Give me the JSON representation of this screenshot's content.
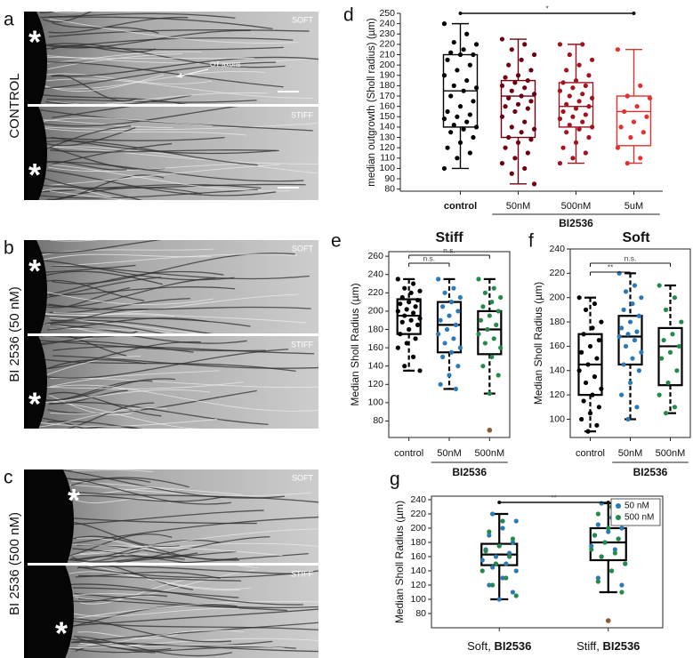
{
  "images": [
    {
      "label": "a",
      "side_label": "CONTROL",
      "tiles": [
        {
          "tag": "SOFT",
          "marker": "*"
        },
        {
          "tag": "STIFF",
          "marker": "*"
        }
      ],
      "annotation": "OT axons"
    },
    {
      "label": "b",
      "side_label": "BI 2536 (50 nM)",
      "tiles": [
        {
          "tag": "SOFT",
          "marker": "*"
        },
        {
          "tag": "STIFF",
          "marker": "*"
        }
      ]
    },
    {
      "label": "c",
      "side_label": "BI 2536 (500 nM)",
      "tiles": [
        {
          "tag": "SOFT",
          "marker": "*"
        },
        {
          "tag": "STIFF",
          "marker": "*"
        }
      ]
    }
  ],
  "chart_data": [
    {
      "type": "box",
      "label": "d",
      "ylabel": "median outgrowth (Sholl radius) (µm)",
      "categories": [
        "control",
        "50nM",
        "500nM",
        "5uM"
      ],
      "group_label": "BI2536",
      "ylim": [
        78,
        250
      ],
      "yticks": [
        80,
        90,
        100,
        110,
        120,
        130,
        140,
        150,
        160,
        170,
        180,
        190,
        200,
        210,
        220,
        230,
        240,
        250
      ],
      "frame": false,
      "whisker_dashed": false,
      "boxes": [
        {
          "color": "#000000",
          "min": 100,
          "q1": 140,
          "median": 175,
          "q3": 210,
          "max": 240,
          "points": [
            240,
            230,
            222,
            220,
            215,
            212,
            210,
            210,
            205,
            200,
            195,
            190,
            185,
            180,
            178,
            175,
            170,
            165,
            160,
            155,
            152,
            150,
            148,
            145,
            142,
            140,
            138,
            135,
            130,
            125,
            120,
            115,
            110,
            100
          ]
        },
        {
          "color": "#6b0010",
          "min": 85,
          "q1": 130,
          "median": 170,
          "q3": 185,
          "max": 225,
          "points": [
            225,
            220,
            215,
            210,
            205,
            200,
            195,
            190,
            188,
            185,
            183,
            180,
            178,
            175,
            172,
            170,
            168,
            165,
            162,
            160,
            158,
            155,
            150,
            145,
            140,
            138,
            135,
            130,
            128,
            125,
            120,
            115,
            110,
            105,
            100,
            95,
            85
          ]
        },
        {
          "color": "#a3121f",
          "min": 105,
          "q1": 140,
          "median": 160,
          "q3": 183,
          "max": 220,
          "points": [
            220,
            220,
            210,
            205,
            200,
            195,
            190,
            185,
            183,
            180,
            178,
            175,
            172,
            170,
            168,
            165,
            162,
            160,
            158,
            155,
            152,
            150,
            148,
            145,
            142,
            140,
            138,
            135,
            130,
            125,
            120,
            115,
            110,
            105
          ]
        },
        {
          "color": "#e3302b",
          "min": 105,
          "q1": 122,
          "median": 155,
          "q3": 170,
          "max": 215,
          "points": [
            215,
            180,
            170,
            168,
            160,
            155,
            150,
            145,
            140,
            135,
            130,
            120,
            110,
            105
          ]
        }
      ],
      "significance": [
        {
          "between": [
            0,
            3
          ],
          "label": "*"
        }
      ]
    },
    {
      "type": "box",
      "label": "e",
      "title": "Stiff",
      "ylabel": "Median Sholl Radius  (µm)",
      "categories": [
        "control",
        "50nM",
        "500nM"
      ],
      "group_label": "BI2536",
      "ylim": [
        62,
        265
      ],
      "yticks": [
        80,
        100,
        120,
        140,
        160,
        180,
        200,
        220,
        240,
        260
      ],
      "frame": true,
      "whisker_dashed": true,
      "boxes": [
        {
          "color": "#000000",
          "point_color": "#000000",
          "min": 135,
          "q1": 175,
          "median": 195,
          "q3": 213,
          "max": 235,
          "points": [
            235,
            230,
            225,
            222,
            220,
            215,
            212,
            210,
            208,
            205,
            202,
            200,
            198,
            195,
            192,
            190,
            188,
            185,
            180,
            175,
            170,
            165,
            160,
            150,
            140,
            135
          ]
        },
        {
          "color": "#000000",
          "point_color": "#2a7ab8",
          "min": 115,
          "q1": 155,
          "median": 185,
          "q3": 210,
          "max": 235,
          "points": [
            235,
            225,
            220,
            215,
            210,
            205,
            200,
            195,
            190,
            185,
            180,
            175,
            170,
            165,
            160,
            155,
            150,
            140,
            130,
            120,
            115
          ]
        },
        {
          "color": "#000000",
          "point_color": "#248a4a",
          "min": 110,
          "q1": 153,
          "median": 180,
          "q3": 200,
          "max": 235,
          "points": [
            235,
            225,
            220,
            215,
            210,
            205,
            200,
            195,
            190,
            185,
            180,
            175,
            170,
            165,
            160,
            150,
            140,
            130,
            110
          ],
          "outliers": [
            70
          ],
          "outlier_color": "#8b5a2b"
        }
      ],
      "significance": [
        {
          "between": [
            0,
            1
          ],
          "label": "n.s."
        },
        {
          "between": [
            0,
            2
          ],
          "label": "n.s."
        }
      ]
    },
    {
      "type": "box",
      "label": "f",
      "title": "Soft",
      "ylabel": "Median Sholl Radius  (µm)",
      "categories": [
        "control",
        "50nM",
        "500nM"
      ],
      "group_label": "BI2536",
      "ylim": [
        85,
        240
      ],
      "yticks": [
        100,
        120,
        140,
        160,
        180,
        200,
        220,
        240
      ],
      "frame": true,
      "whisker_dashed": true,
      "boxes": [
        {
          "color": "#000000",
          "point_color": "#000000",
          "min": 90,
          "q1": 120,
          "median": 145,
          "q3": 170,
          "max": 200,
          "points": [
            200,
            195,
            190,
            180,
            175,
            170,
            165,
            160,
            155,
            150,
            145,
            140,
            135,
            130,
            125,
            120,
            115,
            110,
            105,
            100,
            95,
            90
          ]
        },
        {
          "color": "#000000",
          "point_color": "#2a7ab8",
          "min": 100,
          "q1": 145,
          "median": 168,
          "q3": 185,
          "max": 220,
          "points": [
            220,
            210,
            205,
            200,
            195,
            190,
            185,
            180,
            175,
            172,
            170,
            168,
            165,
            160,
            155,
            150,
            145,
            140,
            130,
            120,
            110,
            100
          ]
        },
        {
          "color": "#000000",
          "point_color": "#248a4a",
          "min": 105,
          "q1": 128,
          "median": 160,
          "q3": 175,
          "max": 210,
          "points": [
            210,
            200,
            190,
            180,
            170,
            165,
            160,
            155,
            150,
            140,
            130,
            120,
            110,
            105
          ]
        }
      ],
      "significance": [
        {
          "between": [
            0,
            1
          ],
          "label": "**"
        },
        {
          "between": [
            0,
            2
          ],
          "label": "n.s."
        }
      ]
    },
    {
      "type": "box",
      "label": "g",
      "ylabel": "Median Sholl Radius  (µm)",
      "categories": [
        [
          "Soft, ",
          "BI2536"
        ],
        [
          "Stiff, ",
          "BI2536"
        ]
      ],
      "ylim": [
        60,
        245
      ],
      "yticks": [
        80,
        100,
        120,
        140,
        160,
        180,
        200,
        220,
        240
      ],
      "frame": true,
      "whisker_dashed": false,
      "series": [
        {
          "name": "50 nM",
          "color": "#2a7ab8"
        },
        {
          "name": "500 nM",
          "color": "#248a4a"
        }
      ],
      "boxes": [
        {
          "color": "#000000",
          "min": 100,
          "q1": 148,
          "median": 163,
          "q3": 178,
          "max": 220,
          "points_by_series": [
            [
              220,
              210,
              200,
              190,
              180,
              175,
              170,
              165,
              160,
              155,
              150,
              145,
              140,
              130,
              120,
              110,
              100
            ],
            [
              210,
              195,
              185,
              175,
              168,
              160,
              150,
              140,
              130,
              120,
              105
            ]
          ]
        },
        {
          "color": "#000000",
          "min": 110,
          "q1": 155,
          "median": 180,
          "q3": 200,
          "max": 235,
          "points_by_series": [
            [
              235,
              225,
              215,
              205,
              200,
              195,
              190,
              185,
              180,
              175,
              170,
              160,
              150,
              140,
              130,
              120
            ],
            [
              230,
              220,
              210,
              200,
              190,
              185,
              180,
              170,
              165,
              160,
              150,
              140,
              125,
              110
            ]
          ],
          "outliers": [
            70
          ],
          "outlier_color": "#8b5a2b"
        }
      ],
      "significance": [
        {
          "between": [
            0,
            1
          ],
          "label": "**"
        }
      ]
    }
  ]
}
